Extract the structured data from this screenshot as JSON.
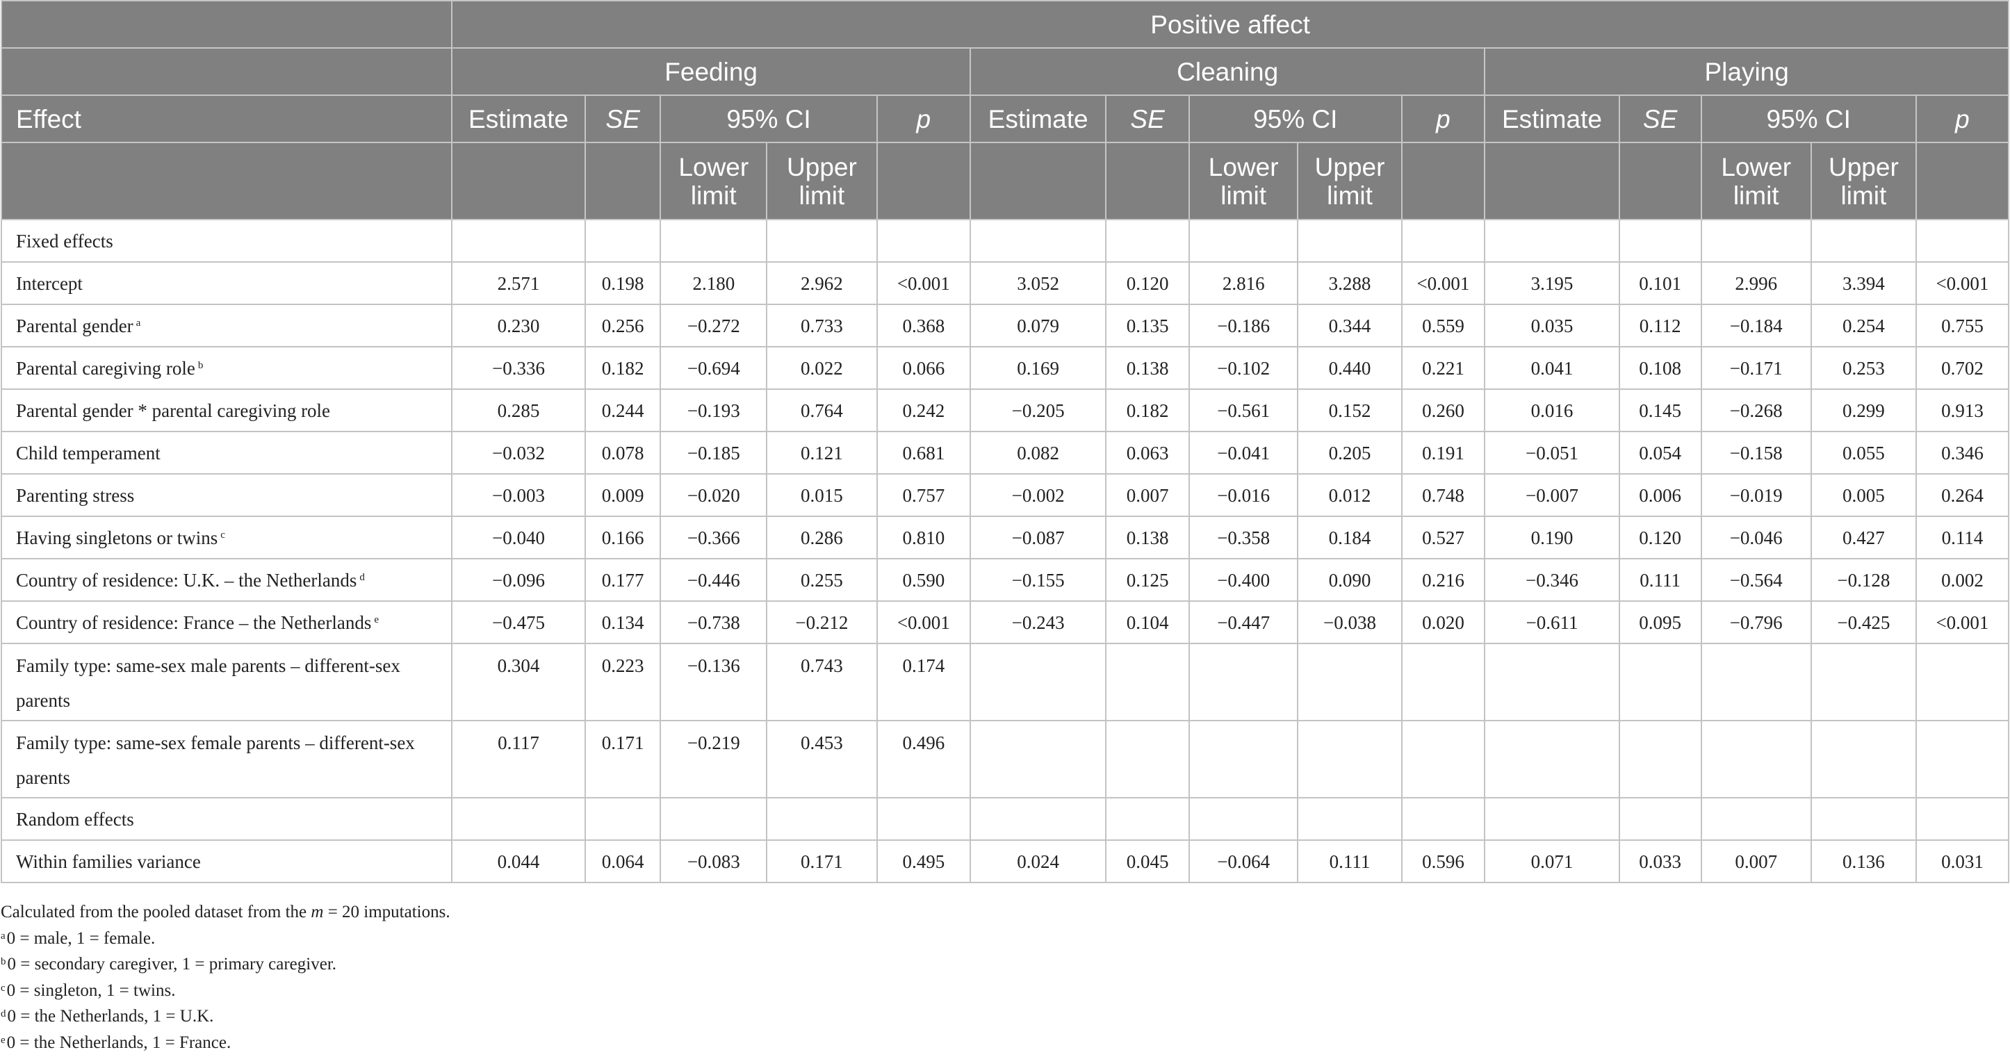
{
  "header": {
    "group": "Positive affect",
    "activities": [
      "Feeding",
      "Cleaning",
      "Playing"
    ],
    "effect_label": "Effect",
    "cols": {
      "estimate": "Estimate",
      "se": "SE",
      "ci": "95% CI",
      "p": "p",
      "lower": "Lower limit",
      "upper": "Upper limit"
    }
  },
  "rows": [
    {
      "effect": "Fixed effects",
      "sup": "",
      "section": true,
      "values": [
        "",
        "",
        "",
        "",
        "",
        "",
        "",
        "",
        "",
        "",
        "",
        "",
        "",
        "",
        ""
      ]
    },
    {
      "effect": "Intercept",
      "sup": "",
      "values": [
        "2.571",
        "0.198",
        "2.180",
        "2.962",
        "<0.001",
        "3.052",
        "0.120",
        "2.816",
        "3.288",
        "<0.001",
        "3.195",
        "0.101",
        "2.996",
        "3.394",
        "<0.001"
      ]
    },
    {
      "effect": "Parental gender",
      "sup": "a",
      "values": [
        "0.230",
        "0.256",
        "−0.272",
        "0.733",
        "0.368",
        "0.079",
        "0.135",
        "−0.186",
        "0.344",
        "0.559",
        "0.035",
        "0.112",
        "−0.184",
        "0.254",
        "0.755"
      ]
    },
    {
      "effect": "Parental caregiving role",
      "sup": "b",
      "values": [
        "−0.336",
        "0.182",
        "−0.694",
        "0.022",
        "0.066",
        "0.169",
        "0.138",
        "−0.102",
        "0.440",
        "0.221",
        "0.041",
        "0.108",
        "−0.171",
        "0.253",
        "0.702"
      ]
    },
    {
      "effect": "Parental gender * parental caregiving role",
      "sup": "",
      "values": [
        "0.285",
        "0.244",
        "−0.193",
        "0.764",
        "0.242",
        "−0.205",
        "0.182",
        "−0.561",
        "0.152",
        "0.260",
        "0.016",
        "0.145",
        "−0.268",
        "0.299",
        "0.913"
      ]
    },
    {
      "effect": "Child temperament",
      "sup": "",
      "values": [
        "−0.032",
        "0.078",
        "−0.185",
        "0.121",
        "0.681",
        "0.082",
        "0.063",
        "−0.041",
        "0.205",
        "0.191",
        "−0.051",
        "0.054",
        "−0.158",
        "0.055",
        "0.346"
      ]
    },
    {
      "effect": "Parenting stress",
      "sup": "",
      "values": [
        "−0.003",
        "0.009",
        "−0.020",
        "0.015",
        "0.757",
        "−0.002",
        "0.007",
        "−0.016",
        "0.012",
        "0.748",
        "−0.007",
        "0.006",
        "−0.019",
        "0.005",
        "0.264"
      ]
    },
    {
      "effect": "Having singletons or twins",
      "sup": "c",
      "values": [
        "−0.040",
        "0.166",
        "−0.366",
        "0.286",
        "0.810",
        "−0.087",
        "0.138",
        "−0.358",
        "0.184",
        "0.527",
        "0.190",
        "0.120",
        "−0.046",
        "0.427",
        "0.114"
      ]
    },
    {
      "effect": "Country of residence: U.K. – the Netherlands",
      "sup": "d",
      "values": [
        "−0.096",
        "0.177",
        "−0.446",
        "0.255",
        "0.590",
        "−0.155",
        "0.125",
        "−0.400",
        "0.090",
        "0.216",
        "−0.346",
        "0.111",
        "−0.564",
        "−0.128",
        "0.002"
      ]
    },
    {
      "effect": "Country of residence: France – the Netherlands",
      "sup": "e",
      "values": [
        "−0.475",
        "0.134",
        "−0.738",
        "−0.212",
        "<0.001",
        "−0.243",
        "0.104",
        "−0.447",
        "−0.038",
        "0.020",
        "−0.611",
        "0.095",
        "−0.796",
        "−0.425",
        "<0.001"
      ]
    },
    {
      "effect": "Family type: same-sex male parents – different-sex parents",
      "sup": "",
      "tall": true,
      "values": [
        "0.304",
        "0.223",
        "−0.136",
        "0.743",
        "0.174",
        "",
        "",
        "",
        "",
        "",
        "",
        "",
        "",
        "",
        ""
      ]
    },
    {
      "effect": "Family type: same-sex female parents – different-sex parents",
      "sup": "",
      "tall": true,
      "values": [
        "0.117",
        "0.171",
        "−0.219",
        "0.453",
        "0.496",
        "",
        "",
        "",
        "",
        "",
        "",
        "",
        "",
        "",
        ""
      ]
    },
    {
      "effect": "Random effects",
      "sup": "",
      "section": true,
      "values": [
        "",
        "",
        "",
        "",
        "",
        "",
        "",
        "",
        "",
        "",
        "",
        "",
        "",
        "",
        ""
      ]
    },
    {
      "effect": "Within families variance",
      "sup": "",
      "values": [
        "0.044",
        "0.064",
        "−0.083",
        "0.171",
        "0.495",
        "0.024",
        "0.045",
        "−0.064",
        "0.111",
        "0.596",
        "0.071",
        "0.033",
        "0.007",
        "0.136",
        "0.031"
      ]
    }
  ],
  "notes": {
    "main_pre": "Calculated from the pooled dataset from the ",
    "main_m": "m",
    "main_post": " = 20 imputations.",
    "footnotes": [
      {
        "mark": "a",
        "text": "0 = male, 1 = female."
      },
      {
        "mark": "b",
        "text": "0 = secondary caregiver, 1 = primary caregiver."
      },
      {
        "mark": "c",
        "text": "0 = singleton, 1 = twins."
      },
      {
        "mark": "d",
        "text": "0 = the Netherlands, 1 = U.K."
      },
      {
        "mark": "e",
        "text": "0 = the Netherlands, 1 = France."
      }
    ]
  }
}
